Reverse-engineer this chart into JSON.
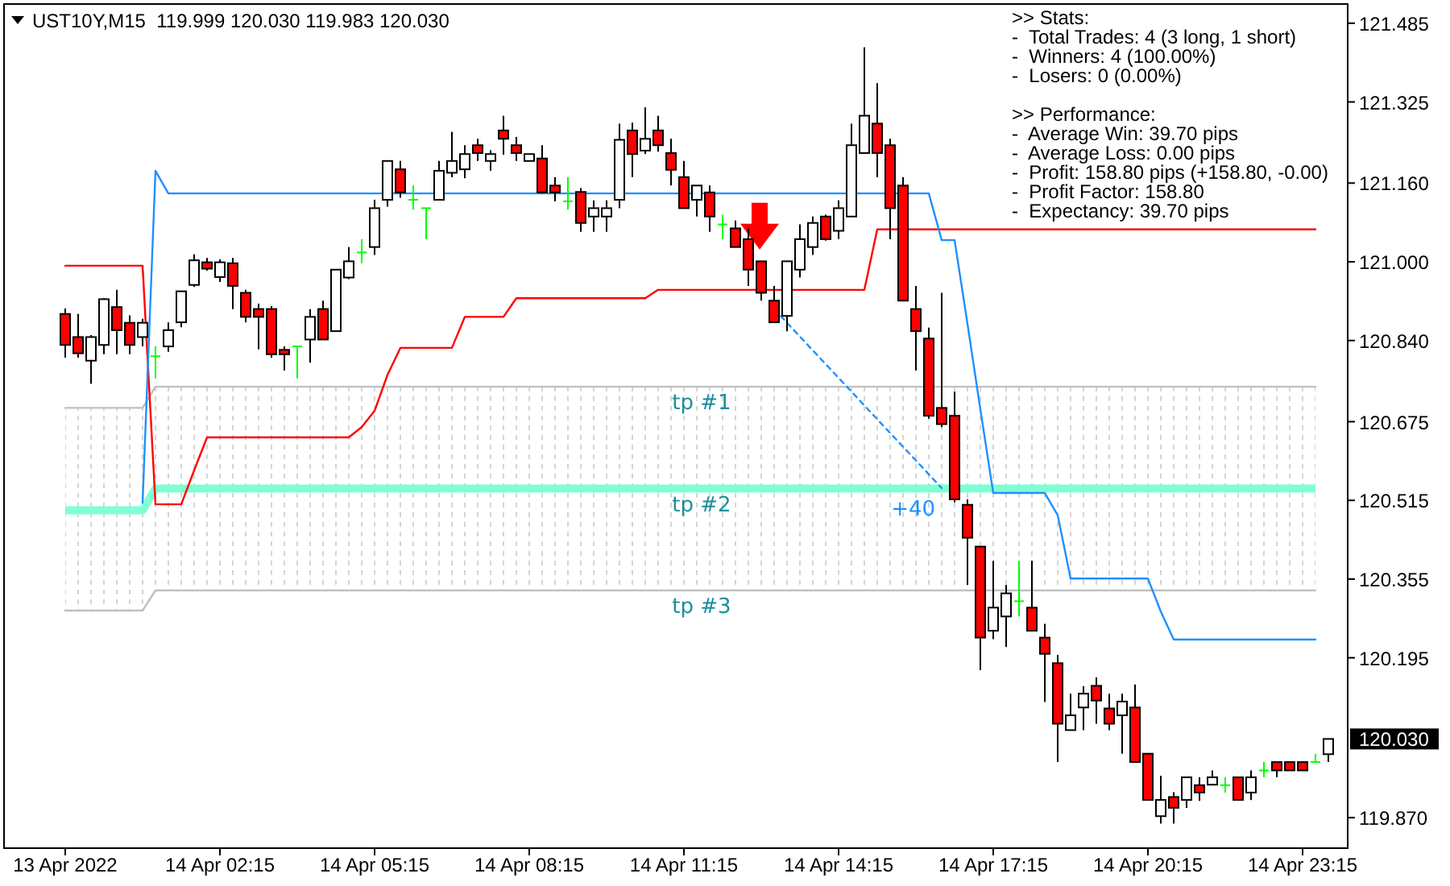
{
  "chart_data": {
    "type": "candlestick",
    "title": "UST10Y,M15  119.999 120.030 119.983 120.030",
    "categories": [
      "13 Apr 2022",
      null,
      null,
      null,
      null,
      null,
      null,
      null,
      null,
      null,
      null,
      null,
      "14 Apr 02:15",
      null,
      null,
      null,
      null,
      null,
      null,
      null,
      null,
      null,
      null,
      null,
      "14 Apr 05:15",
      null,
      null,
      null,
      null,
      null,
      null,
      null,
      null,
      null,
      null,
      null,
      "14 Apr 08:15",
      null,
      null,
      null,
      null,
      null,
      null,
      null,
      null,
      null,
      null,
      null,
      "14 Apr 11:15",
      null,
      null,
      null,
      null,
      null,
      null,
      null,
      null,
      null,
      null,
      null,
      "14 Apr 14:15",
      null,
      null,
      null,
      null,
      null,
      null,
      null,
      null,
      null,
      null,
      null,
      "14 Apr 17:15",
      null,
      null,
      null,
      null,
      null,
      null,
      null,
      null,
      null,
      null,
      null,
      "14 Apr 20:15",
      null,
      null,
      null,
      null,
      null,
      null,
      null,
      null,
      null,
      null,
      null,
      "14 Apr 23:15",
      null,
      null
    ],
    "ohlc": [
      [
        120.894,
        120.905,
        120.805,
        120.831
      ],
      [
        120.847,
        120.894,
        120.805,
        120.814
      ],
      [
        120.799,
        120.851,
        120.752,
        120.847
      ],
      [
        120.831,
        120.926,
        120.812,
        120.924
      ],
      [
        120.908,
        120.943,
        120.812,
        120.861
      ],
      [
        120.876,
        120.891,
        120.812,
        120.831
      ],
      [
        120.847,
        120.884,
        120.828,
        120.876
      ],
      [
        120.808,
        120.828,
        120.763,
        120.808
      ],
      [
        120.828,
        120.877,
        120.817,
        120.861
      ],
      [
        120.877,
        120.94,
        120.867,
        120.94
      ],
      [
        120.953,
        121.015,
        120.949,
        121.003
      ],
      [
        120.999,
        121.008,
        120.982,
        120.986
      ],
      [
        120.969,
        121.005,
        120.959,
        120.999
      ],
      [
        120.997,
        121.008,
        120.904,
        120.951
      ],
      [
        120.937,
        120.943,
        120.877,
        120.888
      ],
      [
        120.904,
        120.915,
        120.822,
        120.888
      ],
      [
        120.904,
        120.91,
        120.805,
        120.812
      ],
      [
        120.821,
        120.828,
        120.779,
        120.812
      ],
      [
        120.828,
        120.828,
        120.763,
        120.828
      ],
      [
        120.842,
        120.904,
        120.795,
        120.888
      ],
      [
        120.904,
        120.921,
        120.842,
        120.842
      ],
      [
        120.859,
        120.985,
        120.858,
        120.984
      ],
      [
        120.968,
        121.03,
        120.965,
        121.001
      ],
      [
        121.019,
        121.046,
        120.997,
        121.019
      ],
      [
        121.03,
        121.126,
        121.014,
        121.109
      ],
      [
        121.126,
        121.205,
        121.112,
        121.205
      ],
      [
        121.188,
        121.205,
        121.13,
        121.141
      ],
      [
        121.126,
        121.155,
        121.106,
        121.126
      ],
      [
        121.109,
        121.109,
        121.046,
        121.109
      ],
      [
        121.126,
        121.205,
        121.126,
        121.185
      ],
      [
        121.181,
        121.264,
        121.172,
        121.205
      ],
      [
        121.188,
        121.237,
        121.17,
        121.219
      ],
      [
        121.237,
        121.25,
        121.205,
        121.221
      ],
      [
        121.205,
        121.227,
        121.185,
        121.219
      ],
      [
        121.267,
        121.297,
        121.218,
        121.25
      ],
      [
        121.237,
        121.254,
        121.205,
        121.221
      ],
      [
        121.205,
        121.219,
        121.205,
        121.219
      ],
      [
        121.21,
        121.237,
        121.139,
        121.141
      ],
      [
        121.155,
        121.172,
        121.123,
        121.141
      ],
      [
        121.123,
        121.172,
        121.106,
        121.123
      ],
      [
        121.142,
        121.15,
        121.061,
        121.079
      ],
      [
        121.092,
        121.125,
        121.061,
        121.109
      ],
      [
        121.092,
        121.125,
        121.061,
        121.109
      ],
      [
        121.126,
        121.281,
        121.109,
        121.248
      ],
      [
        121.267,
        121.283,
        121.172,
        121.219
      ],
      [
        121.226,
        121.314,
        121.219,
        121.25
      ],
      [
        121.267,
        121.297,
        121.224,
        121.237
      ],
      [
        121.221,
        121.25,
        121.155,
        121.187
      ],
      [
        121.172,
        121.205,
        121.109,
        121.109
      ],
      [
        121.126,
        121.155,
        121.092,
        121.155
      ],
      [
        121.141,
        121.155,
        121.061,
        121.092
      ],
      [
        121.076,
        121.096,
        121.046,
        121.076
      ],
      [
        121.068,
        121.084,
        121.03,
        121.03
      ],
      [
        121.046,
        121.068,
        120.951,
        120.984
      ],
      [
        121.001,
        121.001,
        120.921,
        120.937
      ],
      [
        120.921,
        120.951,
        120.877,
        120.877
      ],
      [
        120.89,
        121.001,
        120.859,
        121.001
      ],
      [
        120.984,
        121.076,
        120.968,
        121.046
      ],
      [
        121.03,
        121.092,
        121.014,
        121.079
      ],
      [
        121.092,
        121.096,
        121.043,
        121.046
      ],
      [
        121.063,
        121.125,
        121.046,
        121.109
      ],
      [
        121.092,
        121.281,
        121.092,
        121.237
      ],
      [
        121.221,
        121.436,
        121.221,
        121.297
      ],
      [
        121.281,
        121.363,
        121.172,
        121.221
      ],
      [
        121.237,
        121.25,
        121.046,
        121.109
      ],
      [
        121.155,
        121.172,
        120.921,
        120.921
      ],
      [
        120.904,
        120.951,
        120.779,
        120.859
      ],
      [
        120.844,
        120.866,
        120.681,
        120.687
      ],
      [
        120.703,
        120.937,
        120.664,
        120.67
      ],
      [
        120.687,
        120.736,
        120.511,
        120.517
      ],
      [
        120.506,
        120.517,
        120.343,
        120.439
      ],
      [
        120.421,
        120.421,
        120.17,
        120.236
      ],
      [
        120.25,
        120.392,
        120.233,
        120.297
      ],
      [
        120.279,
        120.343,
        120.217,
        120.326
      ],
      [
        120.31,
        120.392,
        120.279,
        120.31
      ],
      [
        120.297,
        120.392,
        120.25,
        120.25
      ],
      [
        120.236,
        120.264,
        120.105,
        120.203
      ],
      [
        120.184,
        120.201,
        119.983,
        120.061
      ],
      [
        120.048,
        120.122,
        120.048,
        120.078
      ],
      [
        120.094,
        120.137,
        120.048,
        120.122
      ],
      [
        120.138,
        120.155,
        120.061,
        120.108
      ],
      [
        120.092,
        120.122,
        120.048,
        120.061
      ],
      [
        120.078,
        120.122,
        120,
        120.106
      ],
      [
        120.094,
        120.141,
        119.983,
        119.983
      ],
      [
        120,
        120,
        119.906,
        119.906
      ],
      [
        119.873,
        119.955,
        119.858,
        119.906
      ],
      [
        119.912,
        119.922,
        119.858,
        119.89
      ],
      [
        119.906,
        119.952,
        119.89,
        119.952
      ],
      [
        119.936,
        119.952,
        119.904,
        119.921
      ],
      [
        119.937,
        119.966,
        119.937,
        119.952
      ],
      [
        119.936,
        119.952,
        119.921,
        119.936
      ],
      [
        119.952,
        119.952,
        119.906,
        119.906
      ],
      [
        119.921,
        119.966,
        119.906,
        119.952
      ],
      [
        119.966,
        119.983,
        119.952,
        119.966
      ],
      [
        119.983,
        119.983,
        119.952,
        119.966
      ],
      [
        119.983,
        119.983,
        119.966,
        119.966
      ],
      [
        119.983,
        119.983,
        119.966,
        119.966
      ],
      [
        119.983,
        120,
        119.983,
        119.983
      ],
      [
        119.999,
        120.03,
        119.983,
        120.03
      ]
    ],
    "colors": [
      "#ff0000",
      "#ff0000",
      "#ffffff",
      "#ffffff",
      "#ff0000",
      "#ff0000",
      "#ffffff",
      "#00ff00",
      "#ffffff",
      "#ffffff",
      "#ffffff",
      "#ff0000",
      "#ffffff",
      "#ff0000",
      "#ff0000",
      "#ff0000",
      "#ff0000",
      "#ff0000",
      "#00ff00",
      "#ffffff",
      "#ff0000",
      "#ffffff",
      "#ffffff",
      "#00ff00",
      "#ffffff",
      "#ffffff",
      "#ff0000",
      "#00ff00",
      "#00ff00",
      "#ffffff",
      "#ffffff",
      "#ffffff",
      "#ff0000",
      "#ffffff",
      "#ff0000",
      "#ff0000",
      "#ffffff",
      "#ff0000",
      "#ff0000",
      "#00ff00",
      "#ff0000",
      "#ffffff",
      "#ffffff",
      "#ffffff",
      "#ff0000",
      "#ffffff",
      "#ff0000",
      "#ff0000",
      "#ff0000",
      "#ffffff",
      "#ff0000",
      "#00ff00",
      "#ff0000",
      "#ff0000",
      "#ff0000",
      "#ff0000",
      "#ffffff",
      "#ffffff",
      "#ffffff",
      "#ff0000",
      "#ffffff",
      "#ffffff",
      "#ffffff",
      "#ff0000",
      "#ff0000",
      "#ff0000",
      "#ff0000",
      "#ff0000",
      "#ff0000",
      "#ff0000",
      "#ff0000",
      "#ff0000",
      "#ffffff",
      "#ffffff",
      "#00ff00",
      "#ff0000",
      "#ff0000",
      "#ff0000",
      "#ffffff",
      "#ffffff",
      "#ff0000",
      "#ff0000",
      "#ffffff",
      "#ff0000",
      "#ff0000",
      "#ffffff",
      "#ff0000",
      "#ffffff",
      "#ff0000",
      "#ffffff",
      "#00ff00",
      "#ff0000",
      "#ffffff",
      "#00ff00",
      "#ff0000",
      "#ff0000",
      "#ff0000",
      "#00ff00",
      "#ffffff"
    ],
    "series": [
      {
        "type": "line",
        "color": "#7fffd4",
        "values": [
          120.495,
          120.495,
          120.495,
          120.495,
          120.495,
          120.495,
          120.495,
          120.539,
          120.539,
          120.539,
          120.539,
          120.539,
          120.539,
          120.539,
          120.539,
          120.539,
          120.539,
          120.539,
          120.539,
          120.539,
          120.539,
          120.539,
          120.539,
          120.539,
          120.539,
          120.539,
          120.539,
          120.539,
          120.539,
          120.539,
          120.539,
          120.539,
          120.539,
          120.539,
          120.539,
          120.539,
          120.539,
          120.539,
          120.539,
          120.539,
          120.539,
          120.539,
          120.539,
          120.539,
          120.539,
          120.539,
          120.539,
          120.539,
          120.539,
          120.539,
          120.539,
          120.539,
          120.539,
          120.539,
          120.539,
          120.539,
          120.539,
          120.539,
          120.539,
          120.539,
          120.539,
          120.539,
          120.539,
          120.539,
          120.539,
          120.539,
          120.539,
          120.539,
          120.539,
          120.539,
          120.539,
          120.539,
          120.539,
          120.539,
          120.539,
          120.539,
          120.539,
          120.539,
          120.539,
          120.539,
          120.539,
          120.539,
          120.539,
          120.539,
          120.539,
          120.539,
          120.539,
          120.539,
          120.539,
          120.539,
          120.539,
          120.539,
          120.539,
          120.539,
          120.539,
          120.539,
          120.539,
          120.539,
          null
        ],
        "lower": [
          120.291,
          120.291,
          120.291,
          120.291,
          120.291,
          120.291,
          120.291,
          120.332,
          120.332,
          120.332,
          120.332,
          120.332,
          120.332,
          120.332,
          120.332,
          120.332,
          120.332,
          120.332,
          120.332,
          120.332,
          120.332,
          120.332,
          120.332,
          120.332,
          120.332,
          120.332,
          120.332,
          120.332,
          120.332,
          120.332,
          120.332,
          120.332,
          120.332,
          120.332,
          120.332,
          120.332,
          120.332,
          120.332,
          120.332,
          120.332,
          120.332,
          120.332,
          120.332,
          120.332,
          120.332,
          120.332,
          120.332,
          120.332,
          120.332,
          120.332,
          120.332,
          120.332,
          120.332,
          120.332,
          120.332,
          120.332,
          120.332,
          120.332,
          120.332,
          120.332,
          120.332,
          120.332,
          120.332,
          120.332,
          120.332,
          120.332,
          120.332,
          120.332,
          120.332,
          120.332,
          120.332,
          120.332,
          120.332,
          120.332,
          120.332,
          120.332,
          120.332,
          120.332,
          120.332,
          120.332,
          120.332,
          120.332,
          120.332,
          120.332,
          120.332,
          120.332,
          120.332,
          120.332,
          120.332,
          120.332,
          120.332,
          120.332,
          120.332,
          120.332,
          120.332,
          120.332,
          120.332,
          120.332,
          null
        ],
        "upper": [
          120.703,
          120.703,
          120.703,
          120.703,
          120.703,
          120.703,
          120.703,
          120.746,
          120.746,
          120.746,
          120.746,
          120.746,
          120.746,
          120.746,
          120.746,
          120.746,
          120.746,
          120.746,
          120.746,
          120.746,
          120.746,
          120.746,
          120.746,
          120.746,
          120.746,
          120.746,
          120.746,
          120.746,
          120.746,
          120.746,
          120.746,
          120.746,
          120.746,
          120.746,
          120.746,
          120.746,
          120.746,
          120.746,
          120.746,
          120.746,
          120.746,
          120.746,
          120.746,
          120.746,
          120.746,
          120.746,
          120.746,
          120.746,
          120.746,
          120.746,
          120.746,
          120.746,
          120.746,
          120.746,
          120.746,
          120.746,
          120.746,
          120.746,
          120.746,
          120.746,
          120.746,
          120.746,
          120.746,
          120.746,
          120.746,
          120.746,
          120.746,
          120.746,
          120.746,
          120.746,
          120.746,
          120.746,
          120.746,
          120.746,
          120.746,
          120.746,
          120.746,
          120.746,
          120.746,
          120.746,
          120.746,
          120.746,
          120.746,
          120.746,
          120.746,
          120.746,
          120.746,
          120.746,
          120.746,
          120.746,
          120.746,
          120.746,
          120.746,
          120.746,
          120.746,
          120.746,
          120.746,
          120.746,
          null
        ]
      },
      {
        "type": "line",
        "color": "#c0c0c0",
        "values": [
          120.703,
          120.703,
          120.703,
          120.703,
          120.703,
          120.703,
          120.703,
          120.746,
          120.746,
          120.746,
          120.746,
          120.746,
          120.746,
          120.746,
          120.746,
          120.746,
          120.746,
          120.746,
          120.746,
          120.746,
          120.746,
          120.746,
          120.746,
          120.746,
          120.746,
          120.746,
          120.746,
          120.746,
          120.746,
          120.746,
          120.746,
          120.746,
          120.746,
          120.746,
          120.746,
          120.746,
          120.746,
          120.746,
          120.746,
          120.746,
          120.746,
          120.746,
          120.746,
          120.746,
          120.746,
          120.746,
          120.746,
          120.746,
          120.746,
          120.746,
          120.746,
          120.746,
          120.746,
          120.746,
          120.746,
          120.746,
          120.746,
          120.746,
          120.746,
          120.746,
          120.746,
          120.746,
          120.746,
          120.746,
          120.746,
          120.746,
          120.746,
          120.746,
          120.746,
          120.746,
          120.746,
          120.746,
          120.746,
          120.746,
          120.746,
          120.746,
          120.746,
          120.746,
          120.746,
          120.746,
          120.746,
          120.746,
          120.746,
          120.746,
          120.746,
          120.746,
          120.746,
          120.746,
          120.746,
          120.746,
          120.746,
          120.746,
          120.746,
          120.746,
          120.746,
          120.746,
          120.746,
          120.746,
          null
        ]
      },
      {
        "type": "line",
        "color": "#c0c0c0",
        "values": [
          120.291,
          120.291,
          120.291,
          120.291,
          120.291,
          120.291,
          120.291,
          120.332,
          120.332,
          120.332,
          120.332,
          120.332,
          120.332,
          120.332,
          120.332,
          120.332,
          120.332,
          120.332,
          120.332,
          120.332,
          120.332,
          120.332,
          120.332,
          120.332,
          120.332,
          120.332,
          120.332,
          120.332,
          120.332,
          120.332,
          120.332,
          120.332,
          120.332,
          120.332,
          120.332,
          120.332,
          120.332,
          120.332,
          120.332,
          120.332,
          120.332,
          120.332,
          120.332,
          120.332,
          120.332,
          120.332,
          120.332,
          120.332,
          120.332,
          120.332,
          120.332,
          120.332,
          120.332,
          120.332,
          120.332,
          120.332,
          120.332,
          120.332,
          120.332,
          120.332,
          120.332,
          120.332,
          120.332,
          120.332,
          120.332,
          120.332,
          120.332,
          120.332,
          120.332,
          120.332,
          120.332,
          120.332,
          120.332,
          120.332,
          120.332,
          120.332,
          120.332,
          120.332,
          120.332,
          120.332,
          120.332,
          120.332,
          120.332,
          120.332,
          120.332,
          120.332,
          120.332,
          120.332,
          120.332,
          120.332,
          120.332,
          120.332,
          120.332,
          120.332,
          120.332,
          120.332,
          120.332,
          120.332,
          null
        ]
      },
      {
        "type": "line",
        "color": "#ff0000",
        "values": [
          120.992,
          120.992,
          120.992,
          120.992,
          120.992,
          120.992,
          120.992,
          120.507,
          120.507,
          120.507,
          120.576,
          120.643,
          120.643,
          120.643,
          120.643,
          120.643,
          120.643,
          120.643,
          120.643,
          120.643,
          120.643,
          120.643,
          120.643,
          120.664,
          120.697,
          120.77,
          120.825,
          120.825,
          120.825,
          120.825,
          120.825,
          120.888,
          120.888,
          120.888,
          120.888,
          120.926,
          120.926,
          120.926,
          120.926,
          120.926,
          120.926,
          120.926,
          120.926,
          120.926,
          120.926,
          120.926,
          120.943,
          120.943,
          120.943,
          120.943,
          120.943,
          120.943,
          120.943,
          120.943,
          120.943,
          120.943,
          120.943,
          120.943,
          120.943,
          120.943,
          120.943,
          120.943,
          120.943,
          121.066,
          121.066,
          121.066,
          121.066,
          121.066,
          121.066,
          121.066,
          121.066,
          121.066,
          121.066,
          121.066,
          121.066,
          121.066,
          121.066,
          121.066,
          121.066,
          121.066,
          121.066,
          121.066,
          121.066,
          121.066,
          121.066,
          121.066,
          121.066,
          121.066,
          121.066,
          121.066,
          121.066,
          121.066,
          121.066,
          121.066,
          121.066,
          121.066,
          121.066,
          121.066,
          null
        ]
      },
      {
        "type": "line",
        "color": "#1e90ff",
        "values": [
          null,
          null,
          null,
          null,
          null,
          null,
          120.51,
          121.185,
          121.139,
          121.139,
          121.139,
          121.139,
          121.139,
          121.139,
          121.139,
          121.139,
          121.139,
          121.139,
          121.139,
          121.139,
          121.139,
          121.139,
          121.139,
          121.139,
          121.139,
          121.139,
          121.139,
          121.139,
          121.139,
          121.139,
          121.139,
          121.139,
          121.139,
          121.139,
          121.139,
          121.139,
          121.139,
          121.139,
          121.139,
          121.139,
          121.139,
          121.139,
          121.139,
          121.139,
          121.139,
          121.139,
          121.139,
          121.139,
          121.139,
          121.139,
          121.139,
          121.139,
          121.139,
          121.139,
          121.139,
          121.139,
          121.139,
          121.139,
          121.139,
          121.139,
          121.139,
          121.139,
          121.139,
          121.139,
          121.139,
          121.139,
          121.139,
          121.139,
          121.044,
          121.044,
          120.874,
          120.7,
          120.53,
          120.53,
          120.53,
          120.53,
          120.53,
          120.485,
          120.356,
          120.356,
          120.356,
          120.356,
          120.356,
          120.356,
          120.356,
          120.289,
          120.232,
          120.232,
          120.232,
          120.232,
          120.232,
          120.232,
          120.232,
          120.232,
          120.232,
          120.232,
          120.232,
          120.232,
          null
        ]
      },
      {
        "type": "line",
        "name": "+40",
        "color": "#1e90ff",
        "line_style": "dashed",
        "values": [
          null,
          null,
          null,
          null,
          null,
          null,
          null,
          null,
          null,
          null,
          null,
          null,
          null,
          null,
          null,
          null,
          null,
          null,
          null,
          null,
          null,
          null,
          null,
          null,
          null,
          null,
          null,
          null,
          null,
          null,
          null,
          null,
          null,
          null,
          null,
          null,
          null,
          null,
          null,
          null,
          null,
          null,
          null,
          null,
          null,
          null,
          null,
          null,
          null,
          null,
          null,
          null,
          null,
          null,
          null,
          120.904,
          null,
          null,
          null,
          null,
          null,
          null,
          null,
          null,
          null,
          null,
          null,
          null,
          120.54,
          null,
          null,
          null,
          null,
          null,
          null,
          null,
          null,
          null,
          null,
          null,
          null,
          null,
          null,
          null,
          null,
          null,
          null,
          null,
          null,
          null,
          null,
          null,
          null,
          null,
          null,
          null,
          null,
          null,
          null
        ]
      }
    ],
    "ylim": [
      119.808,
      121.524
    ],
    "yticks": [
      121.485,
      121.325,
      {
        "value": 121.16,
        "label": "121.160"
      },
      {
        "value": 121,
        "label": "121.000"
      },
      {
        "value": 120.84,
        "label": "120.840"
      },
      120.675,
      120.515,
      120.355,
      120.195,
      {
        "value": 120.03,
        "label": "120.030"
      },
      {
        "value": 119.87,
        "label": "119.870"
      }
    ],
    "annotations": [
      ">> Stats:\n-  Total Trades: 4 (3 long, 1 short)\n-  Winners: 4 (100.00%)\n-  Losers: 0 (0.00%)",
      ">> Performance:\n-  Average Win: 39.70 pips\n-  Average Loss: 0.00 pips\n-  Profit: 158.80 pips (+158.80, -0.00)\n-  Profit Factor: 158.80\n-  Expectancy: 39.70 pips",
      {
        "text": "tp #1",
        "y": 120.746
      },
      {
        "text": "tp #2",
        "y": 120.539
      },
      {
        "text": "tp #3",
        "y": 120.332
      }
    ]
  }
}
